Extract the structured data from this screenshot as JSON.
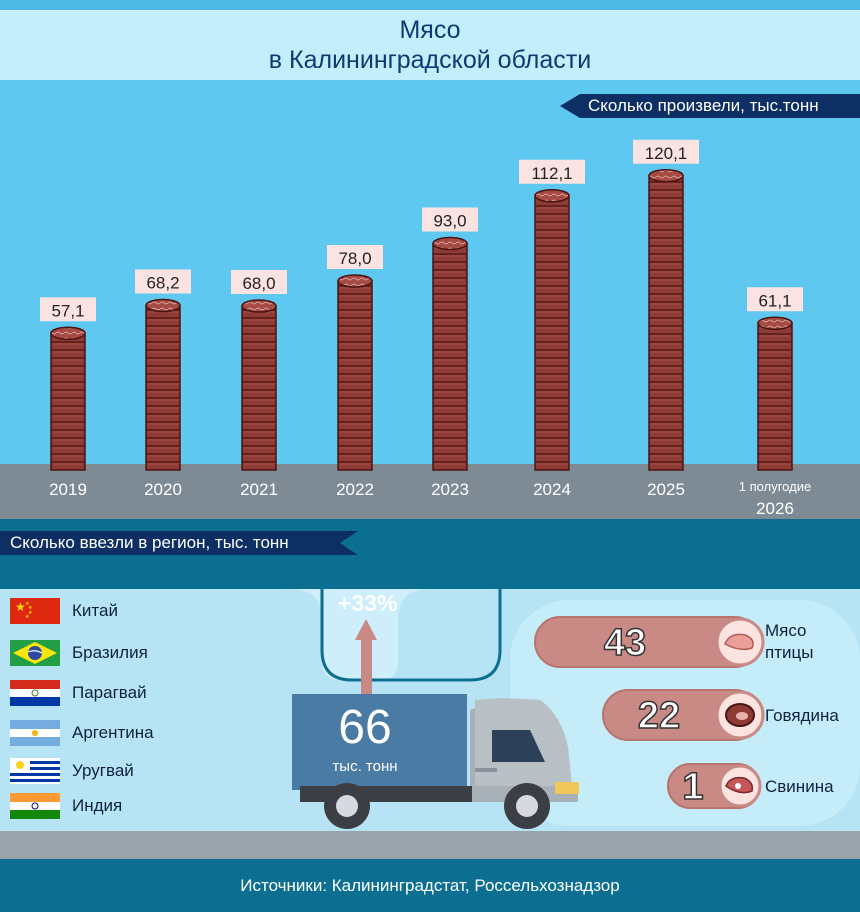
{
  "header": {
    "title_line1": "Мясо",
    "title_line2": "в Калининградской области"
  },
  "production": {
    "ribbon": "Сколько произвели, тыс.тонн",
    "chart_data": {
      "type": "bar",
      "title": "Сколько произвели, тыс.тонн",
      "categories": [
        "2019",
        "2020",
        "2021",
        "2022",
        "2023",
        "2024",
        "2025",
        "1 полугодие 2026"
      ],
      "values": [
        57.1,
        68.2,
        68.0,
        78.0,
        93.0,
        112.1,
        120.1,
        61.1
      ],
      "value_labels": [
        "57,1",
        "68,2",
        "68,0",
        "78,0",
        "93,0",
        "112,1",
        "120,1",
        "61,1"
      ],
      "category_labels": [
        [
          "2019"
        ],
        [
          "2020"
        ],
        [
          "2021"
        ],
        [
          "2022"
        ],
        [
          "2023"
        ],
        [
          "2024"
        ],
        [
          "2025"
        ],
        [
          "1 полугодие",
          "2026"
        ]
      ],
      "ylim": [
        0,
        130
      ],
      "grid": false
    }
  },
  "imports": {
    "ribbon": "Сколько ввезли в регион, тыс. тонн",
    "countries": [
      {
        "name": "Китай",
        "flag": "china-flag-icon"
      },
      {
        "name": "Бразилия",
        "flag": "brazil-flag-icon"
      },
      {
        "name": "Парагвай",
        "flag": "paraguay-flag-icon"
      },
      {
        "name": "Аргентина",
        "flag": "argentina-flag-icon"
      },
      {
        "name": "Уругвай",
        "flag": "uruguay-flag-icon"
      },
      {
        "name": "Индия",
        "flag": "india-flag-icon"
      }
    ],
    "growth": "+33%",
    "total_value": "66",
    "total_unit": "тыс. тонн",
    "chart_data": {
      "type": "bar",
      "categories": [
        "Мясо птицы",
        "Говядина",
        "Свинина"
      ],
      "values": [
        43,
        22,
        1
      ],
      "value_labels": [
        "43",
        "22",
        "1"
      ],
      "label_lines": [
        [
          "Мясо",
          "птицы"
        ],
        [
          "Говядина"
        ],
        [
          "Свинина"
        ]
      ],
      "icons": [
        "poultry-meat-icon",
        "beef-steak-icon",
        "pork-chop-icon"
      ]
    }
  },
  "footer": {
    "sources": "Источники: Калининградстат, Россельхознадзор"
  },
  "colors": {
    "sky": "#5fc8f0",
    "header": "#c4eefb",
    "title": "#0e3a74",
    "ribbon": "#0e2f63",
    "ground": "#7e8a94",
    "band": "#0c6f92",
    "panel": "#cdeefa",
    "coin": "#8e3a35",
    "coin_edge": "#4a1512",
    "label_bg": "#fbe3e1",
    "pill": "#c98a85",
    "truck": "#4a7ba4"
  }
}
